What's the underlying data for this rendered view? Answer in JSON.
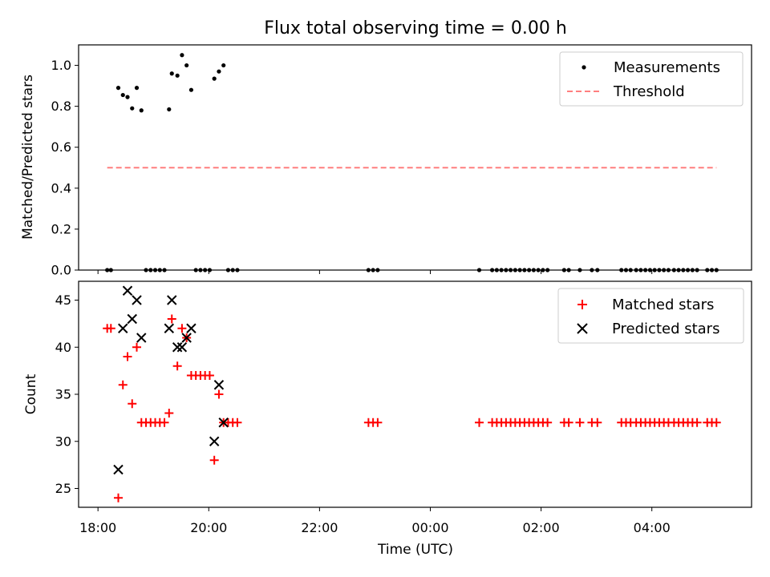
{
  "figure": {
    "title": "Flux total observing time = 0.00 h",
    "xlabel": "Time (UTC)",
    "xticks": [
      "18:00",
      "20:00",
      "22:00",
      "00:00",
      "02:00",
      "04:00"
    ]
  },
  "chart_data": [
    {
      "type": "scatter",
      "ylabel": "Matched/Predicted stars",
      "xlim": [
        "17:39",
        "05:48"
      ],
      "ylim": [
        0,
        1.1
      ],
      "yticks": [
        "0.0",
        "0.2",
        "0.4",
        "0.6",
        "0.8",
        "1.0"
      ],
      "legend_position": "top-right",
      "series": [
        {
          "name": "Measurements",
          "marker": "dot",
          "color": "#000000",
          "points": [
            {
              "x": "18:10",
              "y": 0.0
            },
            {
              "x": "18:14",
              "y": 0.0
            },
            {
              "x": "18:22",
              "y": 0.89
            },
            {
              "x": "18:27",
              "y": 0.855
            },
            {
              "x": "18:32",
              "y": 0.845
            },
            {
              "x": "18:37",
              "y": 0.79
            },
            {
              "x": "18:42",
              "y": 0.89
            },
            {
              "x": "18:47",
              "y": 0.78
            },
            {
              "x": "18:52",
              "y": 0.0
            },
            {
              "x": "18:57",
              "y": 0.0
            },
            {
              "x": "19:02",
              "y": 0.0
            },
            {
              "x": "19:07",
              "y": 0.0
            },
            {
              "x": "19:12",
              "y": 0.0
            },
            {
              "x": "19:17",
              "y": 0.785
            },
            {
              "x": "19:20",
              "y": 0.96
            },
            {
              "x": "19:26",
              "y": 0.95
            },
            {
              "x": "19:31",
              "y": 1.05
            },
            {
              "x": "19:36",
              "y": 1.0
            },
            {
              "x": "19:41",
              "y": 0.88
            },
            {
              "x": "19:46",
              "y": 0.0
            },
            {
              "x": "19:51",
              "y": 0.0
            },
            {
              "x": "19:56",
              "y": 0.0
            },
            {
              "x": "20:01",
              "y": 0.0
            },
            {
              "x": "20:06",
              "y": 0.935
            },
            {
              "x": "20:11",
              "y": 0.97
            },
            {
              "x": "20:16",
              "y": 1.0
            },
            {
              "x": "20:21",
              "y": 0.0
            },
            {
              "x": "20:26",
              "y": 0.0
            },
            {
              "x": "20:31",
              "y": 0.0
            },
            {
              "x": "22:53",
              "y": 0.0
            },
            {
              "x": "22:58",
              "y": 0.0
            },
            {
              "x": "23:03",
              "y": 0.0
            },
            {
              "x": "00:53",
              "y": 0.0
            },
            {
              "x": "01:07",
              "y": 0.0
            },
            {
              "x": "01:12",
              "y": 0.0
            },
            {
              "x": "01:17",
              "y": 0.0
            },
            {
              "x": "01:22",
              "y": 0.0
            },
            {
              "x": "01:27",
              "y": 0.0
            },
            {
              "x": "01:32",
              "y": 0.0
            },
            {
              "x": "01:37",
              "y": 0.0
            },
            {
              "x": "01:42",
              "y": 0.0
            },
            {
              "x": "01:47",
              "y": 0.0
            },
            {
              "x": "01:52",
              "y": 0.0
            },
            {
              "x": "01:57",
              "y": 0.0
            },
            {
              "x": "02:02",
              "y": 0.0
            },
            {
              "x": "02:07",
              "y": 0.0
            },
            {
              "x": "02:25",
              "y": 0.0
            },
            {
              "x": "02:30",
              "y": 0.0
            },
            {
              "x": "02:42",
              "y": 0.0
            },
            {
              "x": "02:55",
              "y": 0.0
            },
            {
              "x": "03:01",
              "y": 0.0
            },
            {
              "x": "03:27",
              "y": 0.0
            },
            {
              "x": "03:32",
              "y": 0.0
            },
            {
              "x": "03:37",
              "y": 0.0
            },
            {
              "x": "03:43",
              "y": 0.0
            },
            {
              "x": "03:48",
              "y": 0.0
            },
            {
              "x": "03:53",
              "y": 0.0
            },
            {
              "x": "03:58",
              "y": 0.0
            },
            {
              "x": "04:03",
              "y": 0.0
            },
            {
              "x": "04:08",
              "y": 0.0
            },
            {
              "x": "04:13",
              "y": 0.0
            },
            {
              "x": "04:18",
              "y": 0.0
            },
            {
              "x": "04:24",
              "y": 0.0
            },
            {
              "x": "04:29",
              "y": 0.0
            },
            {
              "x": "04:34",
              "y": 0.0
            },
            {
              "x": "04:39",
              "y": 0.0
            },
            {
              "x": "04:44",
              "y": 0.0
            },
            {
              "x": "04:49",
              "y": 0.0
            },
            {
              "x": "05:00",
              "y": 0.0
            },
            {
              "x": "05:05",
              "y": 0.0
            },
            {
              "x": "05:10",
              "y": 0.0
            }
          ]
        },
        {
          "name": "Threshold",
          "type": "line",
          "style": "dashed",
          "color": "#ff7f7f",
          "points": [
            {
              "x": "18:10",
              "y": 0.5
            },
            {
              "x": "05:10",
              "y": 0.5
            }
          ]
        }
      ]
    },
    {
      "type": "scatter",
      "ylabel": "Count",
      "xlim": [
        "17:39",
        "05:48"
      ],
      "ylim": [
        23,
        47
      ],
      "yticks": [
        "25",
        "30",
        "35",
        "40",
        "45"
      ],
      "legend_position": "top-right",
      "series": [
        {
          "name": "Matched stars",
          "marker": "plus",
          "color": "#ff0000",
          "points": [
            {
              "x": "18:10",
              "y": 42
            },
            {
              "x": "18:14",
              "y": 42
            },
            {
              "x": "18:22",
              "y": 24
            },
            {
              "x": "18:27",
              "y": 36
            },
            {
              "x": "18:32",
              "y": 39
            },
            {
              "x": "18:37",
              "y": 34
            },
            {
              "x": "18:42",
              "y": 40
            },
            {
              "x": "18:47",
              "y": 32
            },
            {
              "x": "18:52",
              "y": 32
            },
            {
              "x": "18:57",
              "y": 32
            },
            {
              "x": "19:02",
              "y": 32
            },
            {
              "x": "19:07",
              "y": 32
            },
            {
              "x": "19:12",
              "y": 32
            },
            {
              "x": "19:17",
              "y": 33
            },
            {
              "x": "19:20",
              "y": 43
            },
            {
              "x": "19:26",
              "y": 38
            },
            {
              "x": "19:31",
              "y": 42
            },
            {
              "x": "19:36",
              "y": 41
            },
            {
              "x": "19:41",
              "y": 37
            },
            {
              "x": "19:46",
              "y": 37
            },
            {
              "x": "19:51",
              "y": 37
            },
            {
              "x": "19:56",
              "y": 37
            },
            {
              "x": "20:01",
              "y": 37
            },
            {
              "x": "20:06",
              "y": 28
            },
            {
              "x": "20:11",
              "y": 35
            },
            {
              "x": "20:16",
              "y": 32
            },
            {
              "x": "20:21",
              "y": 32
            },
            {
              "x": "20:26",
              "y": 32
            },
            {
              "x": "20:31",
              "y": 32
            },
            {
              "x": "22:53",
              "y": 32
            },
            {
              "x": "22:58",
              "y": 32
            },
            {
              "x": "23:03",
              "y": 32
            },
            {
              "x": "00:53",
              "y": 32
            },
            {
              "x": "01:07",
              "y": 32
            },
            {
              "x": "01:12",
              "y": 32
            },
            {
              "x": "01:17",
              "y": 32
            },
            {
              "x": "01:22",
              "y": 32
            },
            {
              "x": "01:27",
              "y": 32
            },
            {
              "x": "01:32",
              "y": 32
            },
            {
              "x": "01:37",
              "y": 32
            },
            {
              "x": "01:42",
              "y": 32
            },
            {
              "x": "01:47",
              "y": 32
            },
            {
              "x": "01:52",
              "y": 32
            },
            {
              "x": "01:57",
              "y": 32
            },
            {
              "x": "02:02",
              "y": 32
            },
            {
              "x": "02:07",
              "y": 32
            },
            {
              "x": "02:25",
              "y": 32
            },
            {
              "x": "02:30",
              "y": 32
            },
            {
              "x": "02:42",
              "y": 32
            },
            {
              "x": "02:55",
              "y": 32
            },
            {
              "x": "03:01",
              "y": 32
            },
            {
              "x": "03:27",
              "y": 32
            },
            {
              "x": "03:32",
              "y": 32
            },
            {
              "x": "03:37",
              "y": 32
            },
            {
              "x": "03:43",
              "y": 32
            },
            {
              "x": "03:48",
              "y": 32
            },
            {
              "x": "03:53",
              "y": 32
            },
            {
              "x": "03:58",
              "y": 32
            },
            {
              "x": "04:03",
              "y": 32
            },
            {
              "x": "04:08",
              "y": 32
            },
            {
              "x": "04:13",
              "y": 32
            },
            {
              "x": "04:18",
              "y": 32
            },
            {
              "x": "04:24",
              "y": 32
            },
            {
              "x": "04:29",
              "y": 32
            },
            {
              "x": "04:34",
              "y": 32
            },
            {
              "x": "04:39",
              "y": 32
            },
            {
              "x": "04:44",
              "y": 32
            },
            {
              "x": "04:49",
              "y": 32
            },
            {
              "x": "05:00",
              "y": 32
            },
            {
              "x": "05:05",
              "y": 32
            },
            {
              "x": "05:10",
              "y": 32
            }
          ]
        },
        {
          "name": "Predicted stars",
          "marker": "x",
          "color": "#000000",
          "points": [
            {
              "x": "18:22",
              "y": 27
            },
            {
              "x": "18:27",
              "y": 42
            },
            {
              "x": "18:32",
              "y": 46
            },
            {
              "x": "18:37",
              "y": 43
            },
            {
              "x": "18:42",
              "y": 45
            },
            {
              "x": "18:47",
              "y": 41
            },
            {
              "x": "19:17",
              "y": 42
            },
            {
              "x": "19:20",
              "y": 45
            },
            {
              "x": "19:26",
              "y": 40
            },
            {
              "x": "19:31",
              "y": 40
            },
            {
              "x": "19:36",
              "y": 41
            },
            {
              "x": "19:41",
              "y": 42
            },
            {
              "x": "20:06",
              "y": 30
            },
            {
              "x": "20:11",
              "y": 36
            },
            {
              "x": "20:16",
              "y": 32
            }
          ]
        }
      ]
    }
  ]
}
